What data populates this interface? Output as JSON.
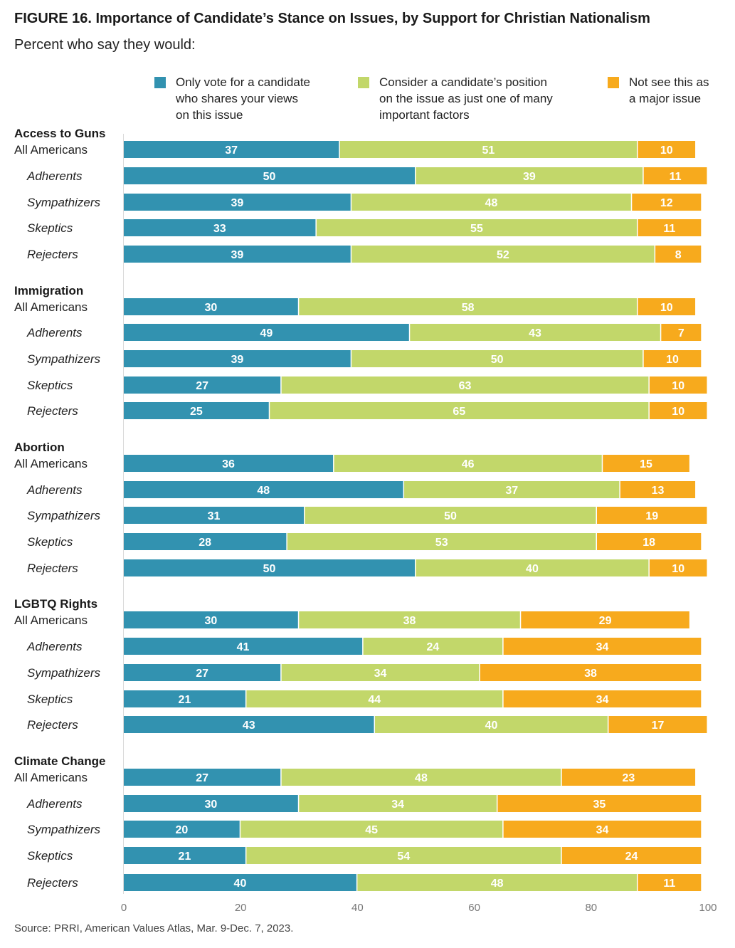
{
  "title": "FIGURE 16. Importance of Candidate’s Stance on Issues, by Support for Christian Nationalism",
  "subtitle": "Percent who say they would:",
  "legend": [
    {
      "line1": "Only vote for a candidate",
      "line2": "who shares your views",
      "line3": "on this issue",
      "color": "#3292b0"
    },
    {
      "line1": "Consider a candidate’s position",
      "line2": "on the issue as just one of many",
      "line3": "important factors",
      "color": "#c2d76a"
    },
    {
      "line1": "Not see this as",
      "line2": "a major issue",
      "line3": "",
      "color": "#f7aa1d"
    }
  ],
  "source": "Source: PRRI, American Values Atlas, Mar. 9-Dec. 7, 2023.",
  "chart_data": {
    "type": "bar",
    "orientation": "horizontal",
    "stacked": true,
    "xlim": [
      0,
      100
    ],
    "xticks": [
      0,
      20,
      40,
      60,
      80,
      100
    ],
    "grid": false,
    "legend_position": "top",
    "series": [
      {
        "name": "Only vote for a candidate who shares your views on this issue",
        "color": "#3292b0"
      },
      {
        "name": "Consider a candidate’s position on the issue as just one of many important factors",
        "color": "#c2d76a"
      },
      {
        "name": "Not see this as a major issue",
        "color": "#f7aa1d"
      }
    ],
    "groups": [
      {
        "name": "Access to Guns",
        "rows": [
          {
            "label": "All Americans",
            "values": [
              37,
              51,
              10
            ]
          },
          {
            "label": "Adherents",
            "values": [
              50,
              39,
              11
            ]
          },
          {
            "label": "Sympathizers",
            "values": [
              39,
              48,
              12
            ]
          },
          {
            "label": "Skeptics",
            "values": [
              33,
              55,
              11
            ]
          },
          {
            "label": "Rejecters",
            "values": [
              39,
              52,
              8
            ]
          }
        ]
      },
      {
        "name": "Immigration",
        "rows": [
          {
            "label": "All Americans",
            "values": [
              30,
              58,
              10
            ]
          },
          {
            "label": "Adherents",
            "values": [
              49,
              43,
              7
            ]
          },
          {
            "label": "Sympathizers",
            "values": [
              39,
              50,
              10
            ]
          },
          {
            "label": "Skeptics",
            "values": [
              27,
              63,
              10
            ]
          },
          {
            "label": "Rejecters",
            "values": [
              25,
              65,
              10
            ]
          }
        ]
      },
      {
        "name": "Abortion",
        "rows": [
          {
            "label": "All Americans",
            "values": [
              36,
              46,
              15
            ]
          },
          {
            "label": "Adherents",
            "values": [
              48,
              37,
              13
            ]
          },
          {
            "label": "Sympathizers",
            "values": [
              31,
              50,
              19
            ]
          },
          {
            "label": "Skeptics",
            "values": [
              28,
              53,
              18
            ]
          },
          {
            "label": "Rejecters",
            "values": [
              50,
              40,
              10
            ]
          }
        ]
      },
      {
        "name": "LGBTQ Rights",
        "rows": [
          {
            "label": "All Americans",
            "values": [
              30,
              38,
              29
            ]
          },
          {
            "label": "Adherents",
            "values": [
              41,
              24,
              34
            ]
          },
          {
            "label": "Sympathizers",
            "values": [
              27,
              34,
              38
            ]
          },
          {
            "label": "Skeptics",
            "values": [
              21,
              44,
              34
            ]
          },
          {
            "label": "Rejecters",
            "values": [
              43,
              40,
              17
            ]
          }
        ]
      },
      {
        "name": "Climate Change",
        "rows": [
          {
            "label": "All Americans",
            "values": [
              27,
              48,
              23
            ]
          },
          {
            "label": "Adherents",
            "values": [
              30,
              34,
              35
            ]
          },
          {
            "label": "Sympathizers",
            "values": [
              20,
              45,
              34
            ]
          },
          {
            "label": "Skeptics",
            "values": [
              21,
              54,
              24
            ]
          },
          {
            "label": "Rejecters",
            "values": [
              40,
              48,
              11
            ]
          }
        ]
      }
    ]
  }
}
